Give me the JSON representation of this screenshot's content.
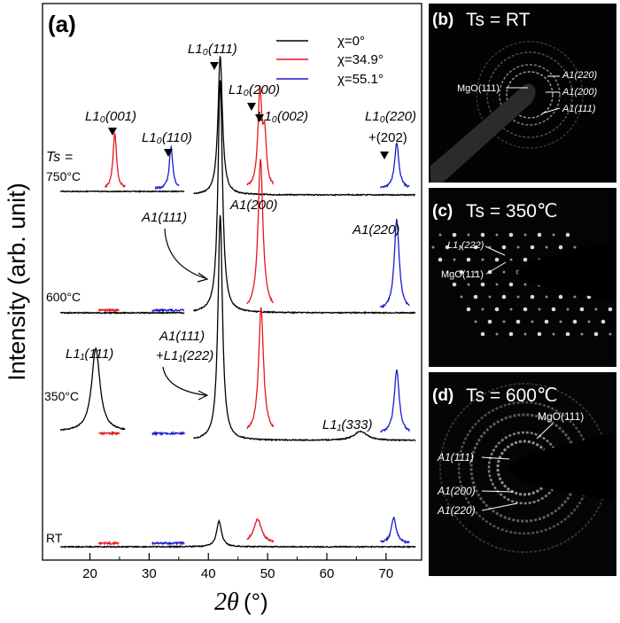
{
  "panel_a": {
    "label": "(a)",
    "ylabel": "Intensity (arb. unit)",
    "xlabel_symbol": "2θ",
    "xlabel_unit": "(°)",
    "legend": [
      {
        "text": "χ=0°",
        "color": "#000000"
      },
      {
        "text": "χ=34.9°",
        "color": "#e8141c"
      },
      {
        "text": "χ=55.1°",
        "color": "#1a1ad0"
      }
    ],
    "temperature_labels": {
      "ts_head": "Ts =",
      "t750": "750°C",
      "t600": "600°C",
      "t350": "350°C",
      "trt": "RT"
    },
    "peak_labels": {
      "l10_111": "L1₀(111)",
      "l10_200": "L1₀(200)",
      "l10_002": "L1₀(002)",
      "l10_001": "L1₀(001)",
      "l10_110": "L1₀(110)",
      "l10_220": "L1₀(220)",
      "l10_202": "+(202)",
      "a1_200": "A1(200)",
      "a1_111": "A1(111)",
      "a1_220": "A1(220)",
      "a1_111_b": "A1(111)",
      "l11_222": "+L1₁(222)",
      "l11_111": "L1₁(111)",
      "l11_333": "L1₁(333)"
    }
  },
  "panels_sad": [
    {
      "label": "(b)",
      "title": "Ts = RT",
      "annotations": [
        "MgO(111)",
        "A1(220)",
        "A1(200)",
        "A1(111)"
      ]
    },
    {
      "label": "(c)",
      "title": "Ts = 350℃",
      "annotations": [
        "L1₁(222)",
        "MgO(111)"
      ]
    },
    {
      "label": "(d)",
      "title": "Ts = 600℃",
      "annotations": [
        "MgO(111)",
        "A1(111)",
        "A1(200)",
        "A1(220)"
      ]
    }
  ],
  "chart_data": {
    "type": "line",
    "xlabel": "2θ (°)",
    "ylabel": "Intensity (arb. unit)",
    "xlim": [
      12,
      76
    ],
    "xticks": [
      20,
      30,
      40,
      50,
      60,
      70
    ],
    "series": [
      {
        "name": "χ=0°",
        "color": "#000000",
        "profiles": [
          {
            "temperature": "750°C",
            "baseline": 0.0,
            "xrange": [
              37.5,
              75
            ],
            "peaks": [
              {
                "x": 42.0,
                "h": 0.92,
                "w": 0.45
              }
            ],
            "xrange2": [
              15,
              36
            ]
          },
          {
            "temperature": "600°C",
            "baseline": 0.0,
            "xrange": [
              15,
              36
            ],
            "peaks": []
          },
          {
            "temperature": "600°C main",
            "baseline": 0.0,
            "xrange": [
              37.5,
              75
            ],
            "peaks": [
              {
                "x": 42.0,
                "h": 1.55,
                "w": 0.45
              }
            ]
          },
          {
            "temperature": "350°C low",
            "baseline": 0.0,
            "xrange": [
              15,
              26
            ],
            "peaks": [
              {
                "x": 21.0,
                "h": 0.55,
                "w": 0.85
              }
            ]
          },
          {
            "temperature": "350°C high",
            "baseline": 0.0,
            "xrange": [
              37.5,
              75
            ],
            "peaks": [
              {
                "x": 42.0,
                "h": 1.5,
                "w": 0.45
              },
              {
                "x": 65.7,
                "h": 0.06,
                "w": 1.3
              }
            ]
          },
          {
            "temperature": "RT",
            "baseline": 0.0,
            "xrange": [
              15,
              75
            ],
            "peaks": [
              {
                "x": 41.8,
                "h": 0.17,
                "w": 0.5
              }
            ]
          }
        ]
      },
      {
        "name": "χ=34.9°",
        "color": "#e8141c",
        "profiles": [
          {
            "temperature": "750°C",
            "segments": [
              {
                "xrange": [
                  22.5,
                  26
                ],
                "peaks": [
                  {
                    "x": 24.2,
                    "h": 0.37,
                    "w": 0.35
                  }
                ]
              },
              {
                "xrange": [
                  46.5,
                  51
                ],
                "peaks": [
                  {
                    "x": 48.7,
                    "h": 0.63,
                    "w": 0.4
                  },
                  {
                    "x": 49.5,
                    "h": 0.32,
                    "w": 0.35
                  }
                ]
              }
            ]
          },
          {
            "temperature": "600°C",
            "segments": [
              {
                "xrange": [
                  21.5,
                  25
                ],
                "peaks": []
              },
              {
                "xrange": [
                  46.5,
                  51
                ],
                "peaks": [
                  {
                    "x": 48.8,
                    "h": 1.0,
                    "w": 0.5
                  }
                ]
              }
            ]
          },
          {
            "temperature": "350°C",
            "segments": [
              {
                "xrange": [
                  21.5,
                  25
                ],
                "peaks": []
              },
              {
                "xrange": [
                  46.5,
                  51
                ],
                "peaks": [
                  {
                    "x": 48.9,
                    "h": 0.83,
                    "w": 0.5
                  }
                ]
              }
            ]
          },
          {
            "temperature": "RT",
            "segments": [
              {
                "xrange": [
                  21.5,
                  25
                ],
                "peaks": []
              },
              {
                "xrange": [
                  46.5,
                  51
                ],
                "peaks": [
                  {
                    "x": 48.3,
                    "h": 0.16,
                    "w": 0.8
                  }
                ]
              }
            ]
          }
        ]
      },
      {
        "name": "χ=55.1°",
        "color": "#1a1ad0",
        "profiles": [
          {
            "temperature": "750°C",
            "segments": [
              {
                "xrange": [
                  31,
                  35
                ],
                "peaks": [
                  {
                    "x": 33.7,
                    "h": 0.28,
                    "w": 0.35
                  }
                ]
              },
              {
                "xrange": [
                  69,
                  74
                ],
                "peaks": [
                  {
                    "x": 71.8,
                    "h": 0.3,
                    "w": 0.45
                  }
                ]
              }
            ]
          },
          {
            "temperature": "600°C",
            "segments": [
              {
                "xrange": [
                  30.5,
                  36
                ],
                "peaks": []
              },
              {
                "xrange": [
                  69,
                  74
                ],
                "peaks": [
                  {
                    "x": 71.8,
                    "h": 0.6,
                    "w": 0.5
                  }
                ]
              }
            ]
          },
          {
            "temperature": "350°C",
            "segments": [
              {
                "xrange": [
                  30.5,
                  36
                ],
                "peaks": []
              },
              {
                "xrange": [
                  69,
                  74
                ],
                "peaks": [
                  {
                    "x": 71.8,
                    "h": 0.42,
                    "w": 0.5
                  }
                ]
              }
            ]
          },
          {
            "temperature": "RT",
            "segments": [
              {
                "xrange": [
                  30.5,
                  36
                ],
                "peaks": []
              },
              {
                "xrange": [
                  69,
                  74
                ],
                "peaks": [
                  {
                    "x": 71.3,
                    "h": 0.17,
                    "w": 0.5
                  }
                ]
              }
            ]
          }
        ]
      }
    ]
  }
}
